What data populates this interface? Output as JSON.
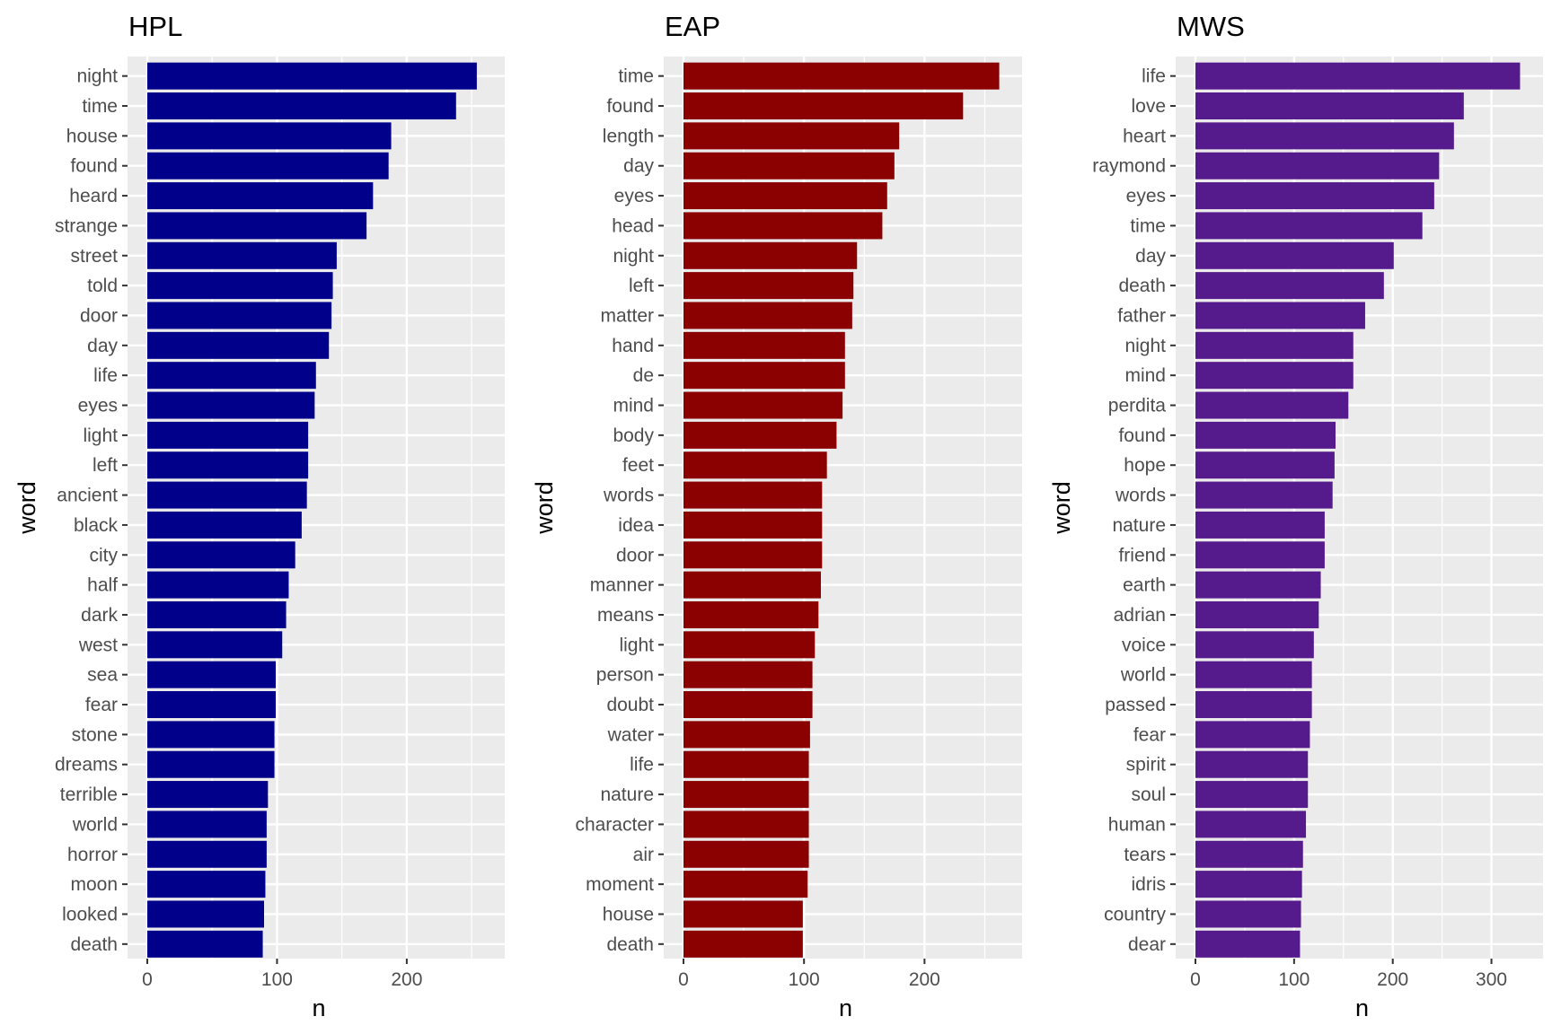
{
  "chart_data": [
    {
      "type": "bar",
      "orientation": "horizontal",
      "title": "HPL",
      "xlabel": "n",
      "ylabel": "word",
      "bar_color": "#00008B",
      "xlim": [
        0,
        270
      ],
      "xticks": [
        0,
        100,
        200
      ],
      "grid": true,
      "categories": [
        "night",
        "time",
        "house",
        "found",
        "heard",
        "strange",
        "street",
        "told",
        "door",
        "day",
        "life",
        "eyes",
        "light",
        "left",
        "ancient",
        "black",
        "city",
        "half",
        "dark",
        "west",
        "sea",
        "fear",
        "stone",
        "dreams",
        "terrible",
        "world",
        "horror",
        "moon",
        "looked",
        "death"
      ],
      "values": [
        254,
        238,
        188,
        186,
        174,
        169,
        146,
        143,
        142,
        140,
        130,
        129,
        124,
        124,
        123,
        119,
        114,
        109,
        107,
        104,
        99,
        99,
        98,
        98,
        93,
        92,
        92,
        91,
        90,
        89
      ]
    },
    {
      "type": "bar",
      "orientation": "horizontal",
      "title": "EAP",
      "xlabel": "n",
      "ylabel": "word",
      "bar_color": "#8B0000",
      "xlim": [
        0,
        275
      ],
      "xticks": [
        0,
        100,
        200
      ],
      "grid": true,
      "categories": [
        "time",
        "found",
        "length",
        "day",
        "eyes",
        "head",
        "night",
        "left",
        "matter",
        "hand",
        "de",
        "mind",
        "body",
        "feet",
        "words",
        "idea",
        "door",
        "manner",
        "means",
        "light",
        "person",
        "doubt",
        "water",
        "life",
        "nature",
        "character",
        "air",
        "moment",
        "house",
        "death"
      ],
      "values": [
        262,
        232,
        179,
        175,
        169,
        165,
        144,
        141,
        140,
        134,
        134,
        132,
        127,
        119,
        115,
        115,
        115,
        114,
        112,
        109,
        107,
        107,
        105,
        104,
        104,
        104,
        104,
        103,
        99,
        99
      ]
    },
    {
      "type": "bar",
      "orientation": "horizontal",
      "title": "MWS",
      "xlabel": "n",
      "ylabel": "word",
      "bar_color": "#551A8B",
      "xlim": [
        0,
        345
      ],
      "xticks": [
        0,
        100,
        200,
        300
      ],
      "grid": true,
      "categories": [
        "life",
        "love",
        "heart",
        "raymond",
        "eyes",
        "time",
        "day",
        "death",
        "father",
        "night",
        "mind",
        "perdita",
        "found",
        "hope",
        "words",
        "nature",
        "friend",
        "earth",
        "adrian",
        "voice",
        "world",
        "passed",
        "fear",
        "spirit",
        "soul",
        "human",
        "tears",
        "idris",
        "country",
        "dear"
      ],
      "values": [
        329,
        272,
        262,
        247,
        242,
        230,
        201,
        191,
        172,
        160,
        160,
        155,
        142,
        141,
        139,
        131,
        131,
        127,
        125,
        120,
        118,
        118,
        116,
        114,
        114,
        112,
        109,
        108,
        107,
        106
      ]
    }
  ]
}
